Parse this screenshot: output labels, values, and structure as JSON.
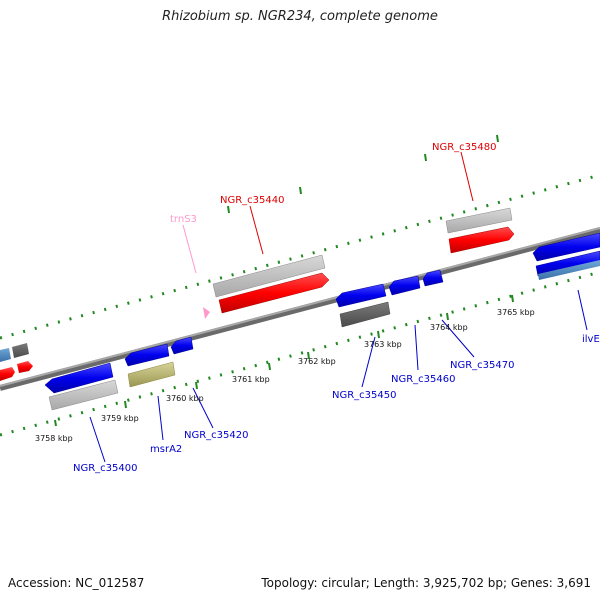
{
  "title": "Rhizobium sp. NGR234, complete genome",
  "footer": {
    "accession": "Accession: NC_012587",
    "summary": "Topology: circular; Length: 3,925,702 bp; Genes: 3,691"
  },
  "colors": {
    "forward_strand_gene": "#ff0000",
    "reverse_strand_gene": "#0000ee",
    "rna_gene": "#ff99cc",
    "backbone": "#808080",
    "tick": "#228822"
  },
  "ticks": [
    "3758 kbp",
    "3759 kbp",
    "3760 kbp",
    "3761 kbp",
    "3762 kbp",
    "3763 kbp",
    "3764 kbp",
    "3765 kbp"
  ],
  "genes": {
    "top": [
      "trnS3",
      "NGR_c35440",
      "NGR_c35480"
    ],
    "bottom": [
      "NGR_c35400",
      "msrA2",
      "NGR_c35420",
      "NGR_c35450",
      "NGR_c35460",
      "NGR_c35470",
      "ilvE"
    ]
  }
}
